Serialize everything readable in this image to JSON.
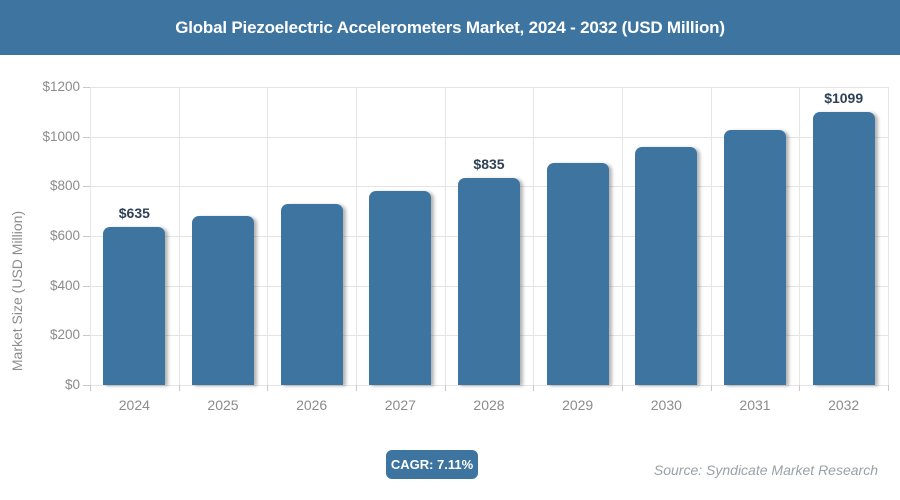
{
  "header": {
    "title": "Global Piezoelectric Accelerometers Market, 2024 - 2032 (USD Million)",
    "bg_color": "#3d74a0",
    "text_color": "#ffffff"
  },
  "chart_data": {
    "type": "bar",
    "title": "Global Piezoelectric Accelerometers Market, 2024 - 2032 (USD Million)",
    "categories": [
      "2024",
      "2025",
      "2026",
      "2027",
      "2028",
      "2029",
      "2030",
      "2031",
      "2032"
    ],
    "values": [
      635,
      680,
      728,
      780,
      835,
      894,
      958,
      1026,
      1099
    ],
    "point_labels": [
      "$635",
      null,
      null,
      null,
      "$835",
      null,
      null,
      null,
      "$1099"
    ],
    "xlabel": "",
    "ylabel": "Market Size (USD Million)",
    "ylim": [
      0,
      1200
    ],
    "yticks": [
      0,
      200,
      400,
      600,
      800,
      1000,
      1200
    ],
    "ytick_labels": [
      "$0",
      "$200",
      "$400",
      "$600",
      "$800",
      "$1000",
      "$1200"
    ],
    "grid": true,
    "legend": "none",
    "bar_color": "#3d74a0",
    "bar_label_color": "#2e4155",
    "axis_text_color": "#8c8c8c"
  },
  "footer": {
    "cagr_label": "CAGR: 7.11%",
    "cagr_badge_color": "#3d74a0",
    "source_label": "Source: Syndicate Market Research"
  }
}
